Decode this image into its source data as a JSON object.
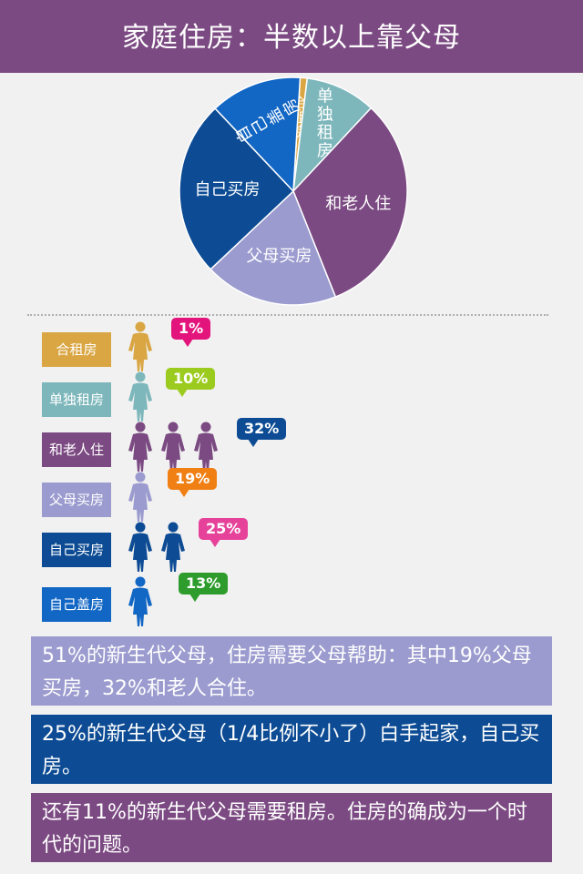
{
  "header": {
    "title": "家庭住房：半数以上靠父母"
  },
  "colors": {
    "header": "#7b4a82",
    "hezu": "#d9a643",
    "dandu": "#7db7bb",
    "laoren": "#7b4a82",
    "fumu": "#9b9bcf",
    "ziji_mai": "#0d4c94",
    "ziji_gai": "#1266c4"
  },
  "chart_data": {
    "type": "pie",
    "slices": [
      {
        "label": "合租房",
        "value": 1,
        "color": "#d9a643"
      },
      {
        "label": "单独租房",
        "value": 10,
        "color": "#7db7bb"
      },
      {
        "label": "和老人住",
        "value": 32,
        "color": "#7b4a82"
      },
      {
        "label": "父母买房",
        "value": 19,
        "color": "#9b9bcf"
      },
      {
        "label": "自己买房",
        "value": 25,
        "color": "#0d4c94"
      },
      {
        "label": "自己盖房",
        "value": 13,
        "color": "#1266c4"
      }
    ]
  },
  "rows": [
    {
      "label": "合租房",
      "percent": "1%",
      "count": 1,
      "color": "#d9a643",
      "figcolor": "#d9a643",
      "bubble": "#e3147c"
    },
    {
      "label": "单独租房",
      "percent": "10%",
      "count": 1,
      "color": "#7db7bb",
      "figcolor": "#7db7bb",
      "bubble": "#9ccb20"
    },
    {
      "label": "和老人住",
      "percent": "32%",
      "count": 3,
      "color": "#7b4a82",
      "figcolor": "#7b4a82",
      "bubble": "#0d4c94"
    },
    {
      "label": "父母买房",
      "percent": "19%",
      "count": 1,
      "color": "#9b9bcf",
      "figcolor": "#9b9bcf",
      "bubble": "#f07f14"
    },
    {
      "label": "自己买房",
      "percent": "25%",
      "count": 2,
      "color": "#0d4c94",
      "figcolor": "#0d4c94",
      "bubble": "#e6429a"
    },
    {
      "label": "自己盖房",
      "percent": "13%",
      "count": 1,
      "color": "#1266c4",
      "figcolor": "#1266c4",
      "bubble": "#2d9c2d"
    }
  ],
  "boxes": [
    {
      "text": "51%的新生代父母，住房需要父母帮助：其中19%父母买房，32%和老人合住。",
      "color": "#9b9bcf"
    },
    {
      "text": "25%的新生代父母（1/4比例不小了）白手起家，自己买房。",
      "color": "#0d4c94"
    },
    {
      "text": "还有11%的新生代父母需要租房。住房的确成为一个时代的问题。",
      "color": "#7b4a82"
    }
  ]
}
